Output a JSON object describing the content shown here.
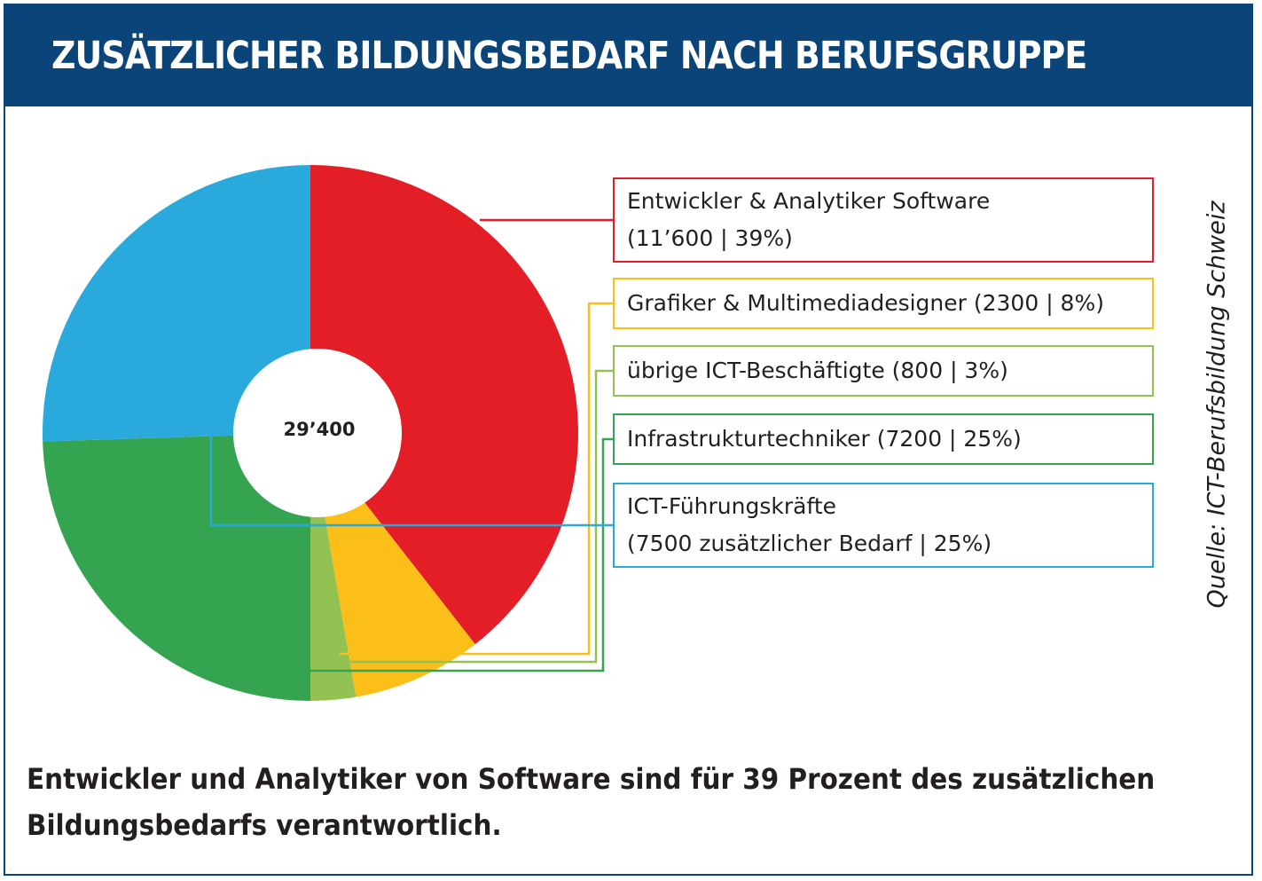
{
  "title": "ZUSÄTZLICHER BILDUNGSBEDARF NACH BERUFSGRUPPE",
  "source": "Quelle:  ICT-Berufsbildung Schweiz",
  "caption": {
    "line1": "Entwickler und Analytiker von Software sind für 39 Prozent des zusätzlichen",
    "line2": "Bildungsbedarfs verantwortlich."
  },
  "chart_data": {
    "type": "pie",
    "center_label": "29’400",
    "series": [
      {
        "value": 11600,
        "percent": 39,
        "color": "#e41e26",
        "label_line1": "Entwickler & Analytiker Software",
        "label_line2": "(11’600 | 39%)"
      },
      {
        "value": 2300,
        "percent": 8,
        "color": "#fcbf1a",
        "label_line1": "Grafiker & Multimediadesigner (2300 | 8%)",
        "label_line2": ""
      },
      {
        "value": 800,
        "percent": 3,
        "color": "#92c252",
        "label_line1": "übrige ICT-Beschäftigte (800 | 3%)",
        "label_line2": ""
      },
      {
        "value": 7200,
        "percent": 25,
        "color": "#34a451",
        "label_line1": "Infrastrukturtechniker (7200 | 25%)",
        "label_line2": ""
      },
      {
        "value": 7500,
        "percent": 25,
        "color": "#2aa9dc",
        "label_line1": "ICT-Führungskräfte",
        "label_line2": "(7500 zusätzlicher Bedarf | 25%)"
      }
    ]
  }
}
